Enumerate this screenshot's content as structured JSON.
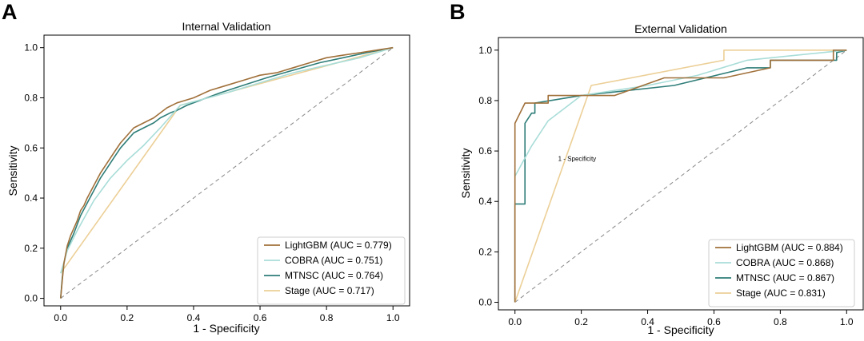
{
  "chart_data": [
    {
      "type": "line",
      "panel_label": "A",
      "title": "Internal Validation",
      "xlabel": "1 - Specificity",
      "ylabel": "Sensitivity",
      "xlim": [
        -0.05,
        1.05
      ],
      "ylim": [
        -0.03,
        1.05
      ],
      "xticks": [
        "0.0",
        "0.2",
        "0.4",
        "0.6",
        "0.8",
        "1.0"
      ],
      "yticks": [
        "0.0",
        "0.2",
        "0.4",
        "0.6",
        "0.8",
        "1.0"
      ],
      "legend_position": "bottom-right",
      "reference_line": {
        "x": [
          0,
          1
        ],
        "y": [
          0,
          1
        ],
        "style": "dashed"
      },
      "series": [
        {
          "name": "LightGBM (AUC = 0.779)",
          "color": "#a0703a",
          "x": [
            0.0,
            0.005,
            0.01,
            0.02,
            0.03,
            0.04,
            0.05,
            0.06,
            0.07,
            0.08,
            0.1,
            0.12,
            0.14,
            0.16,
            0.18,
            0.2,
            0.22,
            0.25,
            0.28,
            0.32,
            0.35,
            0.4,
            0.45,
            0.5,
            0.55,
            0.6,
            0.65,
            0.7,
            0.75,
            0.8,
            0.85,
            0.9,
            0.95,
            1.0
          ],
          "y": [
            0.0,
            0.07,
            0.14,
            0.21,
            0.25,
            0.28,
            0.31,
            0.35,
            0.37,
            0.4,
            0.45,
            0.5,
            0.54,
            0.58,
            0.62,
            0.65,
            0.68,
            0.7,
            0.72,
            0.76,
            0.78,
            0.8,
            0.83,
            0.85,
            0.87,
            0.89,
            0.9,
            0.92,
            0.94,
            0.96,
            0.97,
            0.98,
            0.99,
            1.0
          ]
        },
        {
          "name": "COBRA (AUC = 0.751)",
          "color": "#a9ddd8",
          "x": [
            0.0,
            0.02,
            0.05,
            0.1,
            0.15,
            0.2,
            0.25,
            0.3,
            0.36,
            0.5,
            0.6,
            0.7,
            0.8,
            0.9,
            1.0
          ],
          "y": [
            0.1,
            0.19,
            0.27,
            0.39,
            0.48,
            0.55,
            0.61,
            0.68,
            0.77,
            0.82,
            0.86,
            0.9,
            0.93,
            0.96,
            1.0
          ]
        },
        {
          "name": "MTNSC (AUC = 0.764)",
          "color": "#2e7d78",
          "x": [
            0.0,
            0.005,
            0.01,
            0.02,
            0.04,
            0.06,
            0.08,
            0.1,
            0.12,
            0.14,
            0.16,
            0.18,
            0.2,
            0.22,
            0.25,
            0.28,
            0.3,
            0.33,
            0.35,
            0.38,
            0.42,
            0.48,
            0.55,
            0.62,
            0.7,
            0.78,
            0.85,
            0.92,
            1.0
          ],
          "y": [
            0.0,
            0.08,
            0.14,
            0.2,
            0.26,
            0.33,
            0.38,
            0.43,
            0.48,
            0.52,
            0.56,
            0.6,
            0.63,
            0.66,
            0.68,
            0.7,
            0.72,
            0.74,
            0.75,
            0.77,
            0.79,
            0.82,
            0.85,
            0.88,
            0.91,
            0.94,
            0.96,
            0.98,
            1.0
          ]
        },
        {
          "name": "Stage (AUC = 0.717)",
          "color": "#eccf97",
          "x": [
            0.0,
            0.36,
            1.0
          ],
          "y": [
            0.1,
            0.77,
            1.0
          ]
        }
      ]
    },
    {
      "type": "line",
      "panel_label": "B",
      "title": "External Validation",
      "xlabel": "1 - Specificity",
      "ylabel": "Sensitivity",
      "annotation": "1 - Specificity",
      "annotation_at": {
        "x": 0.13,
        "y": 0.56
      },
      "xlim": [
        -0.05,
        1.05
      ],
      "ylim": [
        -0.03,
        1.05
      ],
      "xticks": [
        "0.0",
        "0.2",
        "0.4",
        "0.6",
        "0.8",
        "1.0"
      ],
      "yticks": [
        "0.0",
        "0.2",
        "0.4",
        "0.6",
        "0.8",
        "1.0"
      ],
      "legend_position": "bottom-right",
      "reference_line": {
        "x": [
          0,
          1
        ],
        "y": [
          0,
          1
        ],
        "style": "dashed"
      },
      "series": [
        {
          "name": "LightGBM (AUC = 0.884)",
          "color": "#a0703a",
          "x": [
            0.0,
            0.0,
            0.03,
            0.03,
            0.1,
            0.1,
            0.3,
            0.45,
            0.63,
            0.77,
            0.77,
            0.87,
            0.96,
            0.96,
            1.0
          ],
          "y": [
            0.0,
            0.71,
            0.79,
            0.79,
            0.79,
            0.82,
            0.82,
            0.89,
            0.89,
            0.93,
            0.96,
            0.96,
            0.96,
            1.0,
            1.0
          ]
        },
        {
          "name": "COBRA (AUC = 0.868)",
          "color": "#a9ddd8",
          "x": [
            0.0,
            0.05,
            0.1,
            0.2,
            0.4,
            0.55,
            0.7,
            0.85,
            1.0
          ],
          "y": [
            0.5,
            0.62,
            0.72,
            0.82,
            0.86,
            0.9,
            0.96,
            0.98,
            1.0
          ]
        },
        {
          "name": "MTNSC (AUC = 0.867)",
          "color": "#2e7d78",
          "x": [
            0.0,
            0.0,
            0.03,
            0.03,
            0.05,
            0.06,
            0.06,
            0.2,
            0.48,
            0.7,
            0.77,
            0.77,
            0.97,
            0.97,
            1.0
          ],
          "y": [
            0.0,
            0.39,
            0.39,
            0.71,
            0.75,
            0.75,
            0.79,
            0.82,
            0.86,
            0.93,
            0.93,
            0.96,
            0.96,
            0.99,
            1.0
          ]
        },
        {
          "name": "Stage (AUC = 0.831)",
          "color": "#eccf97",
          "x": [
            0.0,
            0.23,
            0.63,
            0.63,
            1.0
          ],
          "y": [
            0.0,
            0.86,
            0.96,
            1.0,
            1.0
          ]
        }
      ]
    }
  ]
}
